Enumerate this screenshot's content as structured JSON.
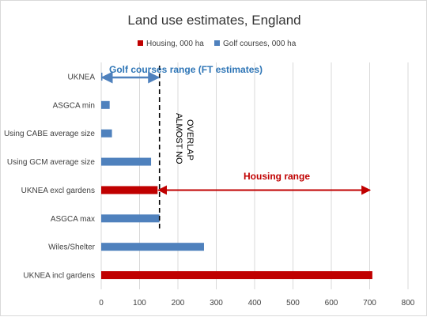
{
  "chart_data": {
    "type": "bar",
    "orientation": "horizontal",
    "title": "Land use estimates, England",
    "legend_position": "top",
    "categories": [
      "UKNEA",
      "ASGCA min",
      "Using CABE average size",
      "Using GCM average size",
      "UKNEA excl gardens",
      "ASGCA max",
      "Wiles/Shelter",
      "UKNEA incl gardens"
    ],
    "series": [
      {
        "name": "Housing, 000 ha",
        "color": "#c00000",
        "values": [
          null,
          null,
          null,
          null,
          147,
          null,
          null,
          707
        ]
      },
      {
        "name": "Golf courses, 000 ha",
        "color": "#4f81bd",
        "values": [
          3,
          22,
          28,
          130,
          null,
          152,
          268,
          null
        ]
      }
    ],
    "xlim": [
      0,
      800
    ],
    "xticks": [
      "0",
      "100",
      "200",
      "300",
      "400",
      "500",
      "600",
      "700",
      "800"
    ],
    "grid": "vertical",
    "annotations": {
      "golf_range_label": "Golf courses range (FT estimates)",
      "golf_range": [
        0,
        152
      ],
      "housing_range_label": "Housing range",
      "housing_range": [
        147,
        707
      ],
      "overlap_line_x": 152,
      "overlap_label_line1": "ALMOST NO",
      "overlap_label_line2": "OVERLAP"
    }
  }
}
